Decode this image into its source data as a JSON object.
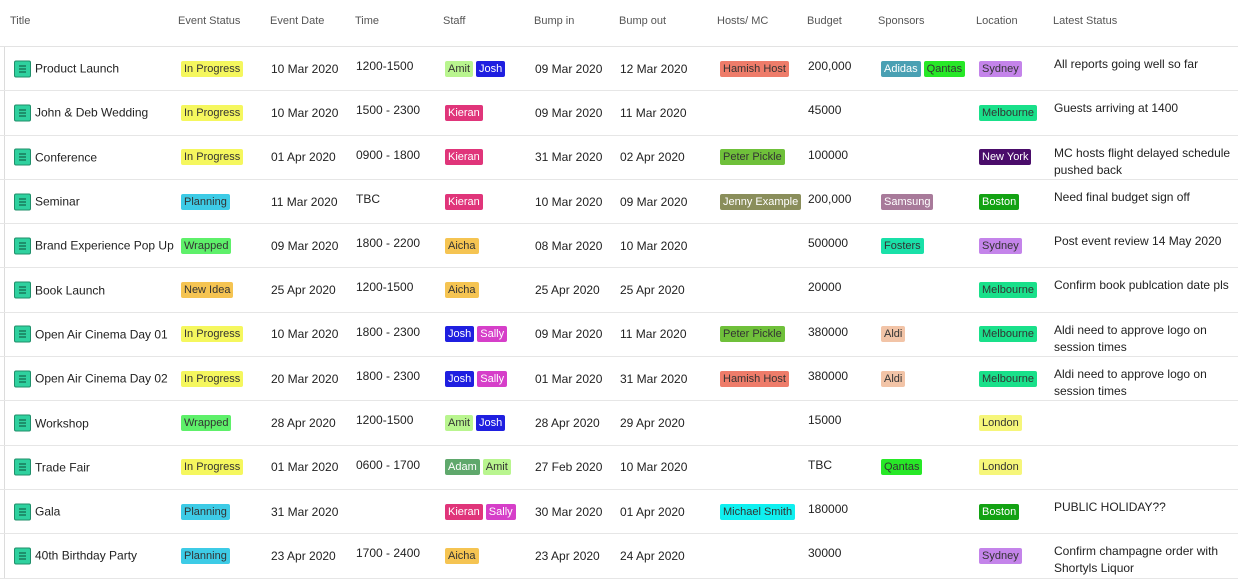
{
  "columns": [
    "Title",
    "Event Status",
    "Event Date",
    "Time",
    "Staff",
    "Bump in",
    "Bump out",
    "Hosts/ MC",
    "Budget",
    "Sponsors",
    "Location",
    "Latest Status"
  ],
  "colors": {
    "status": {
      "In Progress": "#f5f75e",
      "Planning": "#3dcbe6",
      "Wrapped": "#5ef06a",
      "New Idea": "#f5c452"
    },
    "staff": {
      "Amit": "#b9f58f",
      "Josh": "#1f1fe0",
      "Kieran": "#e0357a",
      "Aicha": "#f5c452",
      "Sally": "#d63fc9",
      "Adam": "#5fa86c"
    },
    "hosts": {
      "Hamish Host": "#ee7c6a",
      "Peter Pickle": "#6fc03a",
      "Jenny Example": "#8a8e5b",
      "Michael Smith": "#0ff0f0"
    },
    "sponsors": {
      "Adidas": "#4aa0b3",
      "Qantas": "#27e827",
      "Samsung": "#a87a9a",
      "Fosters": "#19e0a8",
      "Aldi": "#f2c4a7"
    },
    "locations": {
      "Sydney": "#c484ea",
      "Melbourne": "#19e08a",
      "New York": "#4a0c6a",
      "Boston": "#13a213",
      "London": "#f6f67a"
    }
  },
  "rows": [
    {
      "title": "Product Launch",
      "status": "In Progress",
      "date": "10 Mar 2020",
      "time": "1200-1500",
      "staff": [
        "Amit",
        "Josh"
      ],
      "bump_in": "09 Mar 2020",
      "bump_out": "12 Mar 2020",
      "hosts": [
        "Hamish Host"
      ],
      "budget": "200,000",
      "sponsors": [
        "Adidas",
        "Qantas"
      ],
      "location": "Sydney",
      "latest": "All reports going well so far"
    },
    {
      "title": "John & Deb Wedding",
      "status": "In Progress",
      "date": "10 Mar 2020",
      "time": "1500 - 2300",
      "staff": [
        "Kieran"
      ],
      "bump_in": "09 Mar 2020",
      "bump_out": "11 Mar 2020",
      "hosts": [],
      "budget": "45000",
      "sponsors": [],
      "location": "Melbourne",
      "latest": "Guests arriving at 1400"
    },
    {
      "title": "Conference",
      "status": "In Progress",
      "date": "01 Apr 2020",
      "time": "0900 - 1800",
      "staff": [
        "Kieran"
      ],
      "bump_in": "31 Mar 2020",
      "bump_out": "02 Apr 2020",
      "hosts": [
        "Peter Pickle"
      ],
      "budget": "100000",
      "sponsors": [],
      "location": "New York",
      "latest": "MC hosts flight delayed schedule pushed back"
    },
    {
      "title": "Seminar",
      "status": "Planning",
      "date": "11 Mar 2020",
      "time": "TBC",
      "staff": [
        "Kieran"
      ],
      "bump_in": "10 Mar 2020",
      "bump_out": "09 Mar 2020",
      "hosts": [
        "Jenny Example"
      ],
      "budget": "200,000",
      "sponsors": [
        "Samsung"
      ],
      "location": "Boston",
      "latest": "Need final budget sign off"
    },
    {
      "title": "Brand Experience Pop Up",
      "status": "Wrapped",
      "date": "09 Mar 2020",
      "time": "1800 - 2200",
      "staff": [
        "Aicha"
      ],
      "bump_in": "08 Mar 2020",
      "bump_out": "10 Mar 2020",
      "hosts": [],
      "budget": "500000",
      "sponsors": [
        "Fosters"
      ],
      "location": "Sydney",
      "latest": "Post event review 14 May 2020"
    },
    {
      "title": "Book Launch",
      "status": "New Idea",
      "date": "25 Apr 2020",
      "time": "1200-1500",
      "staff": [
        "Aicha"
      ],
      "bump_in": "25 Apr 2020",
      "bump_out": "25 Apr 2020",
      "hosts": [],
      "budget": "20000",
      "sponsors": [],
      "location": "Melbourne",
      "latest": "Confirm book publcation date pls"
    },
    {
      "title": "Open Air Cinema Day 01",
      "status": "In Progress",
      "date": "10 Mar 2020",
      "time": "1800 - 2300",
      "staff": [
        "Josh",
        "Sally"
      ],
      "bump_in": "09 Mar 2020",
      "bump_out": "11 Mar 2020",
      "hosts": [
        "Peter Pickle"
      ],
      "budget": "380000",
      "sponsors": [
        "Aldi"
      ],
      "location": "Melbourne",
      "latest": "Aldi need to approve logo on session times"
    },
    {
      "title": "Open Air Cinema Day 02",
      "status": "In Progress",
      "date": "20 Mar 2020",
      "time": "1800 - 2300",
      "staff": [
        "Josh",
        "Sally"
      ],
      "bump_in": "01 Mar 2020",
      "bump_out": "31 Mar 2020",
      "hosts": [
        "Hamish Host"
      ],
      "budget": "380000",
      "sponsors": [
        "Aldi"
      ],
      "location": "Melbourne",
      "latest": "Aldi need to approve logo on session times"
    },
    {
      "title": "Workshop",
      "status": "Wrapped",
      "date": "28 Apr 2020",
      "time": "1200-1500",
      "staff": [
        "Amit",
        "Josh"
      ],
      "bump_in": "28 Apr 2020",
      "bump_out": "29 Apr 2020",
      "hosts": [],
      "budget": "15000",
      "sponsors": [],
      "location": "London",
      "latest": ""
    },
    {
      "title": "Trade Fair",
      "status": "In Progress",
      "date": "01 Mar 2020",
      "time": "0600 - 1700",
      "staff": [
        "Adam",
        "Amit"
      ],
      "bump_in": "27 Feb 2020",
      "bump_out": "10 Mar 2020",
      "hosts": [],
      "budget": "TBC",
      "sponsors": [
        "Qantas"
      ],
      "location": "London",
      "latest": ""
    },
    {
      "title": "Gala",
      "status": "Planning",
      "date": "31 Mar 2020",
      "time": "",
      "staff": [
        "Kieran",
        "Sally"
      ],
      "bump_in": "30 Mar 2020",
      "bump_out": "01 Apr 2020",
      "hosts": [
        "Michael Smith"
      ],
      "budget": "180000",
      "sponsors": [],
      "location": "Boston",
      "latest": "PUBLIC HOLIDAY??"
    },
    {
      "title": "40th Birthday Party",
      "status": "Planning",
      "date": "23 Apr 2020",
      "time": "1700 - 2400",
      "staff": [
        "Aicha"
      ],
      "bump_in": "23 Apr 2020",
      "bump_out": "24 Apr 2020",
      "hosts": [],
      "budget": "30000",
      "sponsors": [],
      "location": "Sydney",
      "latest": "Confirm champagne order with Shortyls Liquor"
    }
  ]
}
